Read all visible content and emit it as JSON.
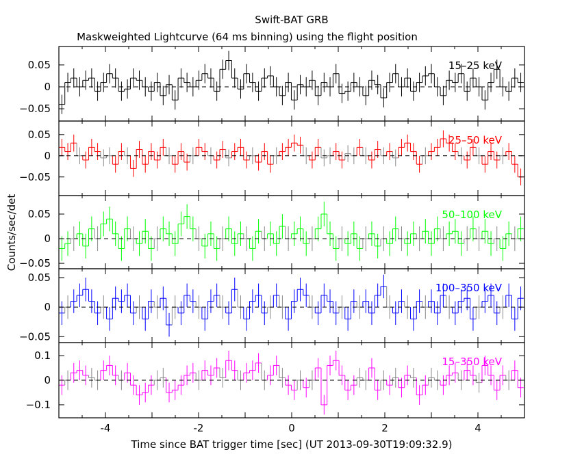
{
  "title": "Swift-BAT GRB",
  "subtitle": "Maskweighted Lightcurve (64 ms binning) using the flight position",
  "chart_data": {
    "type": "line",
    "title": "Swift-BAT GRB",
    "subtitle": "Maskweighted Lightcurve (64 ms binning) using the flight position",
    "xlabel": "Time since BAT trigger time [sec] (UT 2013-09-30T19:09:32.9)",
    "ylabel": "Counts/sec/det",
    "xlim": [
      -5,
      5
    ],
    "xticks": [
      "-4",
      "-2",
      "0",
      "2",
      "4"
    ],
    "xtick_values": [
      -4,
      -2,
      0,
      2,
      4
    ],
    "x_start": -5,
    "bin_width": 0.128,
    "panels": [
      {
        "name": "15-25 keV",
        "label": "15–25 keV",
        "color": "#000000",
        "ylim": [
          -0.078,
          0.092
        ],
        "yticks": [
          "0.05",
          "0",
          "−0.05"
        ],
        "ytick_values": [
          0.05,
          0,
          -0.05
        ],
        "error": 0.022,
        "values": [
          -0.04,
          0.01,
          0.02,
          0.0,
          0.015,
          0.02,
          -0.01,
          0.01,
          0.03,
          0.02,
          -0.01,
          -0.005,
          0.02,
          0.015,
          0.0,
          -0.01,
          0.01,
          -0.02,
          0.005,
          -0.03,
          0.02,
          0.01,
          0.0,
          0.015,
          0.03,
          0.02,
          -0.01,
          0.04,
          0.06,
          0.02,
          -0.005,
          0.03,
          0.01,
          -0.01,
          0.02,
          0.025,
          0.0,
          -0.02,
          0.01,
          -0.03,
          0.005,
          0.0,
          0.015,
          -0.02,
          0.01,
          0.0,
          0.03,
          -0.015,
          -0.01,
          0.01,
          0.0,
          -0.02,
          0.015,
          0.005,
          -0.025,
          0.01,
          0.03,
          0.0,
          0.02,
          -0.01,
          0.01,
          0.025,
          0.03,
          0.0,
          -0.02,
          0.015,
          0.01,
          0.03,
          -0.01,
          0.02,
          0.0,
          -0.03,
          0.01,
          0.04,
          0.0,
          -0.01,
          0.02,
          0.01
        ]
      },
      {
        "name": "25-50 keV",
        "label": "25–50 keV",
        "color": "#ff0000",
        "ylim": [
          -0.094,
          0.082
        ],
        "yticks": [
          "0.05",
          "0",
          "−0.05"
        ],
        "ytick_values": [
          0.05,
          0,
          -0.05
        ],
        "error": 0.02,
        "values": [
          0.02,
          0.01,
          0.03,
          0.0,
          -0.01,
          0.02,
          0.01,
          -0.005,
          0.0,
          -0.02,
          0.01,
          0.0,
          -0.03,
          0.015,
          -0.02,
          0.01,
          -0.01,
          0.02,
          0.0,
          -0.02,
          0.01,
          -0.015,
          0.0,
          0.02,
          0.01,
          0.0,
          -0.01,
          0.015,
          -0.005,
          0.01,
          0.02,
          -0.01,
          0.0,
          -0.015,
          0.01,
          -0.02,
          0.0,
          0.01,
          0.02,
          0.03,
          0.025,
          0.0,
          -0.01,
          0.02,
          -0.005,
          0.0,
          0.01,
          -0.01,
          0.005,
          0.0,
          0.02,
          0.0,
          -0.01,
          0.015,
          0.0,
          0.01,
          -0.005,
          0.02,
          0.03,
          0.01,
          -0.02,
          0.0,
          0.01,
          0.02,
          0.04,
          0.03,
          0.01,
          0.0,
          -0.01,
          0.02,
          0.0,
          -0.02,
          0.01,
          -0.01,
          0.0,
          0.01,
          -0.02,
          -0.05
        ]
      },
      {
        "name": "50-100 keV",
        "label": "50–100 keV",
        "color": "#00ff00",
        "ylim": [
          -0.061,
          0.0875
        ],
        "yticks": [
          "0.05",
          "0",
          "−0.05"
        ],
        "ytick_values": [
          0.05,
          0,
          -0.05
        ],
        "error": 0.025,
        "values": [
          -0.02,
          -0.01,
          0.0,
          0.01,
          -0.015,
          0.02,
          0.0,
          0.03,
          0.04,
          0.01,
          -0.02,
          0.02,
          0.0,
          -0.01,
          0.015,
          -0.02,
          0.0,
          0.02,
          0.01,
          -0.01,
          0.03,
          0.045,
          0.02,
          0.0,
          -0.015,
          0.01,
          -0.02,
          0.0,
          0.02,
          -0.01,
          0.01,
          0.0,
          -0.02,
          0.015,
          0.0,
          0.01,
          -0.01,
          0.025,
          0.0,
          0.01,
          0.02,
          -0.01,
          0.0,
          0.02,
          0.05,
          0.01,
          -0.02,
          0.0,
          -0.01,
          0.01,
          -0.02,
          0.0,
          0.01,
          -0.015,
          0.0,
          -0.01,
          0.02,
          0.0,
          -0.01,
          0.01,
          0.0,
          0.015,
          -0.01,
          0.02,
          0.0,
          0.01,
          0.015,
          -0.01,
          0.0,
          0.02,
          0.0,
          0.015,
          -0.01,
          0.0,
          -0.02,
          0.01,
          0.0,
          0.02
        ]
      },
      {
        "name": "100-350 keV",
        "label": "100–350 keV",
        "color": "#0000ff",
        "ylim": [
          -0.06,
          0.065
        ],
        "yticks": [
          "0.05",
          "0",
          "−0.05"
        ],
        "ytick_values": [
          0.05,
          0,
          -0.05
        ],
        "error": 0.02,
        "values": [
          -0.01,
          0.0,
          0.01,
          0.02,
          0.03,
          0.01,
          -0.01,
          0.0,
          -0.02,
          0.015,
          0.01,
          0.02,
          -0.01,
          0.0,
          -0.02,
          0.01,
          0.0,
          0.015,
          -0.03,
          0.0,
          -0.01,
          0.02,
          0.01,
          0.0,
          -0.02,
          0.01,
          0.02,
          0.0,
          -0.01,
          0.03,
          0.0,
          -0.02,
          0.01,
          0.02,
          -0.01,
          0.0,
          0.02,
          0.0,
          -0.02,
          0.01,
          0.03,
          0.02,
          0.0,
          -0.01,
          0.02,
          0.01,
          -0.01,
          0.0,
          -0.02,
          0.01,
          0.0,
          0.01,
          -0.01,
          0.02,
          0.035,
          0.0,
          -0.01,
          0.01,
          0.0,
          -0.02,
          0.01,
          0.0,
          0.01,
          -0.01,
          0.02,
          0.0,
          -0.01,
          0.01,
          0.015,
          -0.02,
          0.0,
          0.01,
          0.02,
          -0.01,
          0.0,
          0.02,
          -0.02,
          0.015
        ]
      },
      {
        "name": "15-350 keV",
        "label": "15–350 keV",
        "color": "#ff00ff",
        "ylim": [
          -0.153,
          0.153
        ],
        "yticks": [
          "0.1",
          "0",
          "−0.1"
        ],
        "ytick_values": [
          0.1,
          0,
          -0.1
        ],
        "error": 0.04,
        "values": [
          -0.02,
          0.0,
          0.03,
          0.04,
          0.02,
          0.01,
          0.0,
          0.04,
          0.06,
          0.02,
          0.0,
          0.03,
          -0.02,
          -0.06,
          -0.05,
          -0.02,
          0.0,
          0.01,
          -0.05,
          -0.04,
          -0.02,
          0.02,
          0.03,
          0.0,
          0.04,
          0.02,
          0.05,
          0.01,
          0.08,
          0.04,
          0.0,
          0.03,
          0.04,
          0.07,
          0.0,
          0.02,
          0.06,
          0.01,
          -0.02,
          -0.04,
          0.0,
          -0.03,
          0.0,
          0.05,
          -0.1,
          0.06,
          0.08,
          0.02,
          -0.04,
          -0.02,
          0.01,
          0.0,
          0.05,
          -0.04,
          0.0,
          -0.02,
          0.01,
          -0.03,
          0.02,
          0.01,
          -0.06,
          -0.02,
          0.01,
          0.0,
          -0.02,
          0.02,
          0.03,
          0.0,
          0.04,
          0.02,
          -0.01,
          0.06,
          0.02,
          -0.04,
          0.02,
          0.0,
          0.04,
          -0.03
        ]
      }
    ]
  }
}
